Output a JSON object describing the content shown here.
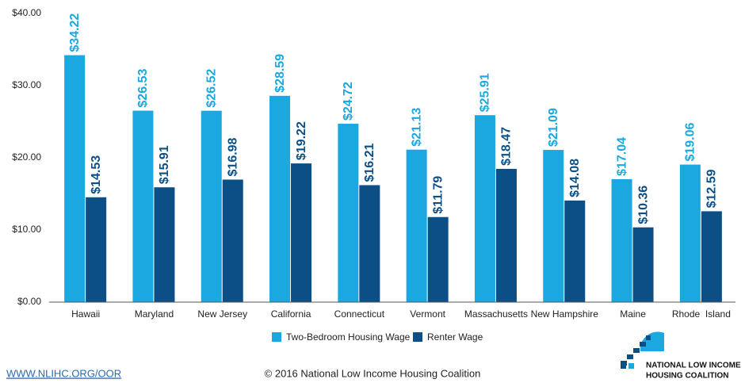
{
  "chart_data": {
    "type": "bar",
    "categories": [
      "Hawaii",
      "Maryland",
      "New Jersey",
      "California",
      "Connecticut",
      "Vermont",
      "Massachusetts",
      "New Hampshire",
      "Maine",
      "Rhode  Island"
    ],
    "series": [
      {
        "name": "Two-Bedroom Housing Wage",
        "color": "#1ba7df",
        "values": [
          34.22,
          26.53,
          26.52,
          28.59,
          24.72,
          21.13,
          25.91,
          21.09,
          17.04,
          19.06
        ],
        "value_labels": [
          "$34.22",
          "$26.53",
          "$26.52",
          "$28.59",
          "$24.72",
          "$21.13",
          "$25.91",
          "$21.09",
          "$17.04",
          "$19.06"
        ]
      },
      {
        "name": "Renter Wage",
        "color": "#0b4f86",
        "values": [
          14.53,
          15.91,
          16.98,
          19.22,
          16.21,
          11.79,
          18.47,
          14.08,
          10.36,
          12.59
        ],
        "value_labels": [
          "$14.53",
          "$15.91",
          "$16.98",
          "$19.22",
          "$16.21",
          "$11.79",
          "$18.47",
          "$14.08",
          "$10.36",
          "$12.59"
        ]
      }
    ],
    "ylim": [
      0,
      40
    ],
    "yticks": [
      {
        "value": 0,
        "label": "$0.00"
      },
      {
        "value": 10,
        "label": "$10.00"
      },
      {
        "value": 20,
        "label": "$20.00"
      },
      {
        "value": 30,
        "label": "$30.00"
      },
      {
        "value": 40,
        "label": "$40.00"
      }
    ],
    "grid": false,
    "legend": "bottom"
  },
  "footer": {
    "url": "WWW.NLIHC.ORG/OOR",
    "copyright": "© 2016 National Low Income Housing Coalition",
    "logo_line1": "NATIONAL LOW INCOME",
    "logo_line2": "HOUSING COALITION"
  }
}
